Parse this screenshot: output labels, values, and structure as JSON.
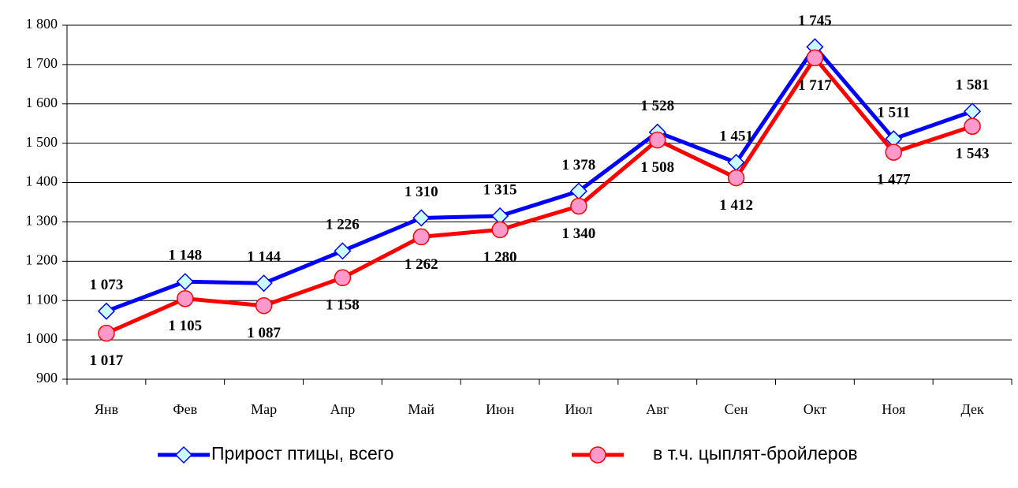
{
  "chart_data": {
    "type": "line",
    "categories": [
      "Янв",
      "Фев",
      "Мар",
      "Апр",
      "Май",
      "Июн",
      "Июл",
      "Авг",
      "Сен",
      "Окт",
      "Ноя",
      "Дек"
    ],
    "series": [
      {
        "name": "Прирост птицы, всего",
        "color": "#0000ff",
        "marker": "diamond",
        "marker_fill": "#ccffff",
        "values": [
          1073,
          1148,
          1144,
          1226,
          1310,
          1315,
          1378,
          1528,
          1451,
          1745,
          1511,
          1581
        ],
        "value_labels": [
          "1 073",
          "1 148",
          "1 144",
          "1 226",
          "1 310",
          "1 315",
          "1 378",
          "1 528",
          "1 451",
          "1 745",
          "1 511",
          "1 581"
        ]
      },
      {
        "name": "в т.ч. цыплят-бройлеров",
        "color": "#ff0000",
        "marker": "circle",
        "marker_fill": "#ff99cc",
        "values": [
          1017,
          1105,
          1087,
          1158,
          1262,
          1280,
          1340,
          1508,
          1412,
          1717,
          1477,
          1543
        ],
        "value_labels": [
          "1 017",
          "1 105",
          "1 087",
          "1 158",
          "1 262",
          "1 280",
          "1 340",
          "1 508",
          "1 412",
          "1 717",
          "1 477",
          "1 543"
        ]
      }
    ],
    "ylim": [
      900,
      1800
    ],
    "yticks": [
      900,
      {
        "value": 1000,
        "label": "1 000"
      },
      {
        "value": 1100,
        "label": "1 100"
      },
      {
        "value": 1200,
        "label": "1 200"
      },
      {
        "value": 1300,
        "label": "1 300"
      },
      {
        "value": 1400,
        "label": "1 400"
      },
      {
        "value": 1500,
        "label": "1 500"
      },
      {
        "value": 1600,
        "label": "1 600"
      },
      {
        "value": 1700,
        "label": "1 700"
      },
      {
        "value": 1800,
        "label": "1 800"
      }
    ],
    "grid": true,
    "legend": "bottom"
  }
}
